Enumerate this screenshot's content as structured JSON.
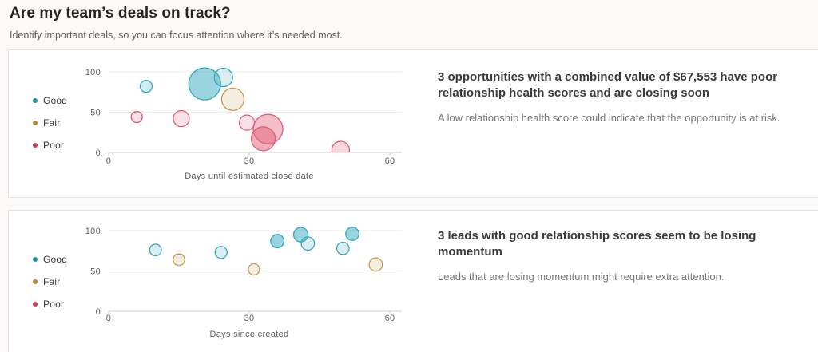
{
  "page": {
    "title": "Are my team’s deals on track?",
    "subtitle": "Identify important deals, so you can focus attention where it’s needed most."
  },
  "colors": {
    "legend": {
      "good": "#1a93a8",
      "fair": "#b98a2c",
      "poor": "#d03b55"
    },
    "series": {
      "Good": "#35a9bd",
      "Fair": "#c49a52",
      "Poor": "#df5f78"
    },
    "gridline": "#ececec",
    "axis_line": "#cfcdcb",
    "card_background": "#ffffff",
    "page_background": "#faf9f8"
  },
  "cards": [
    {
      "insight_title": "3 opportunities with a combined value of $67,553 have poor relationship health scores and are closing soon",
      "insight_subtitle": "A low relationship health score could indicate that the opportunity is at risk.",
      "legend": [
        {
          "label": "Good",
          "color_key": "good"
        },
        {
          "label": "Fair",
          "color_key": "fair"
        },
        {
          "label": "Poor",
          "color_key": "poor"
        }
      ]
    },
    {
      "insight_title": "3 leads with good relationship scores seem to be losing momentum",
      "insight_subtitle": "Leads that are losing momentum might require extra attention.",
      "legend": [
        {
          "label": "Good",
          "color_key": "good"
        },
        {
          "label": "Fair",
          "color_key": "fair"
        },
        {
          "label": "Poor",
          "color_key": "poor"
        }
      ]
    }
  ],
  "chart_data": [
    {
      "type": "scatter",
      "title": "",
      "xlabel": "Days until estimated close date",
      "ylabel": "",
      "xlim": [
        0,
        60
      ],
      "ylim": [
        0,
        100
      ],
      "xticks": [
        0,
        30,
        60
      ],
      "yticks": [
        0,
        50,
        100
      ],
      "grid": true,
      "legend_position": "left",
      "series": [
        {
          "name": "Good",
          "points": [
            {
              "x": 8,
              "y": 82,
              "r": 7.5,
              "fill_opacity": 0.22
            },
            {
              "x": 24.5,
              "y": 93,
              "r": 11.5,
              "fill_opacity": 0.18
            },
            {
              "x": 20.5,
              "y": 85,
              "r": 20,
              "fill_opacity": 0.5
            }
          ]
        },
        {
          "name": "Fair",
          "points": [
            {
              "x": 26.5,
              "y": 66,
              "r": 14,
              "fill_opacity": 0.18
            }
          ]
        },
        {
          "name": "Poor",
          "points": [
            {
              "x": 6,
              "y": 44,
              "r": 7,
              "fill_opacity": 0.18
            },
            {
              "x": 15.5,
              "y": 42,
              "r": 10,
              "fill_opacity": 0.18
            },
            {
              "x": 29.5,
              "y": 37,
              "r": 9.5,
              "fill_opacity": 0.18
            },
            {
              "x": 34,
              "y": 29,
              "r": 18.5,
              "fill_opacity": 0.4
            },
            {
              "x": 33,
              "y": 17,
              "r": 15,
              "fill_opacity": 0.5
            },
            {
              "x": 49.5,
              "y": 3,
              "r": 11,
              "fill_opacity": 0.25
            }
          ]
        }
      ]
    },
    {
      "type": "scatter",
      "title": "",
      "xlabel": "Days since created",
      "ylabel": "",
      "xlim": [
        0,
        60
      ],
      "ylim": [
        0,
        100
      ],
      "xticks": [
        0,
        30,
        60
      ],
      "yticks": [
        0,
        50,
        100
      ],
      "grid": true,
      "legend_position": "left",
      "series": [
        {
          "name": "Good",
          "points": [
            {
              "x": 10,
              "y": 76,
              "r": 7.3,
              "fill_opacity": 0.18
            },
            {
              "x": 24,
              "y": 73,
              "r": 7.5,
              "fill_opacity": 0.18
            },
            {
              "x": 36,
              "y": 87,
              "r": 8.3,
              "fill_opacity": 0.5
            },
            {
              "x": 41,
              "y": 95,
              "r": 9,
              "fill_opacity": 0.5
            },
            {
              "x": 42.5,
              "y": 84,
              "r": 8.3,
              "fill_opacity": 0.18
            },
            {
              "x": 50,
              "y": 78,
              "r": 7.7,
              "fill_opacity": 0.18
            },
            {
              "x": 52,
              "y": 96,
              "r": 8.3,
              "fill_opacity": 0.5
            }
          ]
        },
        {
          "name": "Fair",
          "points": [
            {
              "x": 15,
              "y": 64,
              "r": 7.3,
              "fill_opacity": 0.18
            },
            {
              "x": 31,
              "y": 52,
              "r": 7,
              "fill_opacity": 0.18
            },
            {
              "x": 57,
              "y": 58,
              "r": 8.3,
              "fill_opacity": 0.18
            }
          ]
        },
        {
          "name": "Poor",
          "points": []
        }
      ]
    }
  ]
}
